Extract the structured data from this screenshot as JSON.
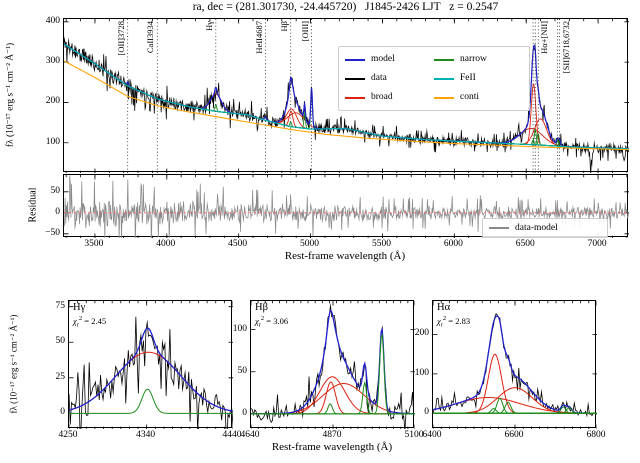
{
  "title": "ra, dec = (281.301730, -24.445720)   J1845-2426 LJT   z = 0.2547",
  "labels": {
    "flux": "fλ (10⁻¹⁷ erg s⁻¹ cm⁻² Å⁻¹)",
    "xaxis": "Rest-frame wavelength (Å)",
    "residual": "Residual"
  },
  "colors": {
    "model": "#2222cc",
    "data": "#000000",
    "broad": "#dd2211",
    "narrow": "#1d8c1d",
    "fe2": "#00b2b2",
    "conti": "#ffa408",
    "residual": "#8a8a8a",
    "zero_line": "#ff6b6b",
    "vline": "#222222"
  },
  "legend": {
    "main": [
      {
        "label": "model",
        "color": "model"
      },
      {
        "label": "data",
        "color": "data"
      },
      {
        "label": "broad",
        "color": "broad"
      },
      {
        "label": "narrow",
        "color": "narrow"
      },
      {
        "label": "FeII",
        "color": "fe2"
      },
      {
        "label": "conti",
        "color": "conti"
      }
    ],
    "residual": [
      {
        "label": "data-model",
        "color": "residual"
      }
    ]
  },
  "chart_data": [
    {
      "id": "main",
      "type": "line",
      "xlim": [
        3285,
        7215
      ],
      "ylim": [
        25,
        407
      ],
      "xticks": [
        3500,
        4000,
        4500,
        5000,
        5500,
        6000,
        6500,
        7000
      ],
      "xminor": 100,
      "yticks": [
        100,
        200,
        300,
        400
      ],
      "conti_anchors": [
        [
          3285,
          303
        ],
        [
          3500,
          262
        ],
        [
          3728,
          215
        ],
        [
          3934,
          192
        ],
        [
          4100,
          180
        ],
        [
          4340,
          165
        ],
        [
          4600,
          149
        ],
        [
          4861,
          133
        ],
        [
          5100,
          121
        ],
        [
          5400,
          111
        ],
        [
          5700,
          104
        ],
        [
          6000,
          98
        ],
        [
          6300,
          94
        ],
        [
          6563,
          90
        ],
        [
          6800,
          87
        ],
        [
          7000,
          85
        ],
        [
          7215,
          83
        ]
      ],
      "fe2_extra_anchors": [
        [
          3285,
          42
        ],
        [
          3500,
          34
        ],
        [
          3728,
          26
        ],
        [
          3934,
          17
        ],
        [
          4150,
          13
        ],
        [
          4340,
          13
        ],
        [
          4480,
          16
        ],
        [
          4560,
          18
        ],
        [
          4687,
          12
        ],
        [
          4861,
          7
        ],
        [
          5000,
          8
        ],
        [
          5150,
          16
        ],
        [
          5250,
          19
        ],
        [
          5350,
          15
        ],
        [
          5500,
          8
        ],
        [
          5800,
          6
        ],
        [
          6100,
          6
        ],
        [
          6400,
          5
        ],
        [
          6563,
          5
        ],
        [
          6800,
          3
        ],
        [
          7215,
          2
        ]
      ],
      "broad_components": [
        {
          "c": 4342,
          "a": 43,
          "s": 38
        },
        {
          "c": 4864,
          "a": 38,
          "s": 13
        },
        {
          "c": 4868,
          "a": 44,
          "s": 35
        },
        {
          "c": 4900,
          "a": 36,
          "s": 58
        },
        {
          "c": 6551,
          "a": 150,
          "s": 16
        },
        {
          "c": 6600,
          "a": 65,
          "s": 42
        },
        {
          "c": 6535,
          "a": 40,
          "s": 78
        }
      ],
      "narrow_components": [
        {
          "c": 3728,
          "a": 10,
          "s": 5
        },
        {
          "c": 4341,
          "a": 17,
          "s": 6.5
        },
        {
          "c": 4687,
          "a": 8,
          "s": 8
        },
        {
          "c": 4862,
          "a": 12,
          "s": 6
        },
        {
          "c": 4959,
          "a": 37,
          "s": 5.5
        },
        {
          "c": 5007,
          "a": 95,
          "s": 6
        },
        {
          "c": 6548,
          "a": 12,
          "s": 6
        },
        {
          "c": 6563,
          "a": 38,
          "s": 7
        },
        {
          "c": 6583,
          "a": 28,
          "s": 7
        },
        {
          "c": 6718,
          "a": 16,
          "s": 6
        },
        {
          "c": 6732,
          "a": 14,
          "s": 6
        }
      ],
      "noise": {
        "seed": 11,
        "amp_anchors": [
          [
            3285,
            27
          ],
          [
            3800,
            21
          ],
          [
            4300,
            18
          ],
          [
            5000,
            15
          ],
          [
            5600,
            13
          ],
          [
            6300,
            13
          ],
          [
            6800,
            14
          ],
          [
            7215,
            15
          ]
        ]
      },
      "dips": [
        {
          "c": 6950,
          "a": 45,
          "s": 8
        },
        {
          "c": 7180,
          "a": 35,
          "s": 6
        }
      ],
      "vlines": [
        {
          "label": "[OII]3728",
          "lines": [
            3728
          ]
        },
        {
          "label": "CaII3934",
          "lines": [
            3934
          ]
        },
        {
          "label": "Hγ",
          "lines": [
            4341
          ]
        },
        {
          "label": "HeII4687",
          "lines": [
            4687
          ]
        },
        {
          "label": "Hβ",
          "lines": [
            4862
          ]
        },
        {
          "label": "[OIII]",
          "lines": [
            5007
          ]
        },
        {
          "label": "Hα+[NII]",
          "lines": [
            6548,
            6563,
            6584
          ]
        },
        {
          "label": "[SII]6718,6732",
          "lines": [
            6718,
            6732
          ]
        }
      ]
    },
    {
      "id": "residual",
      "type": "line",
      "xlim": [
        3285,
        7215
      ],
      "ylim": [
        -60,
        90
      ],
      "xticks": [
        3500,
        4000,
        4500,
        5000,
        5500,
        6000,
        6500,
        7000
      ],
      "xminor": 100,
      "yticks": [
        -50,
        0,
        50
      ],
      "zero_line": true,
      "noise": {
        "seed": 23,
        "amp_anchors": [
          [
            3285,
            45
          ],
          [
            3800,
            38
          ],
          [
            4300,
            30
          ],
          [
            5000,
            24
          ],
          [
            5700,
            20
          ],
          [
            6400,
            17
          ],
          [
            7215,
            15
          ]
        ]
      }
    },
    {
      "id": "hg",
      "type": "line",
      "line_name": "Hγ",
      "chi": {
        "sym": "χ",
        "sub": "r",
        "sup": "2",
        "val": "= 2.45"
      },
      "xlim": [
        4250,
        4440
      ],
      "ylim": [
        -11,
        79
      ],
      "xticks": [
        4250,
        4340,
        4440
      ],
      "xminor": 10,
      "yticks": [
        0,
        25,
        50,
        75
      ],
      "broad_components": [
        {
          "c": 4342,
          "a": 43,
          "s": 38
        }
      ],
      "narrow_components": [
        {
          "c": 4341,
          "a": 17,
          "s": 6.5
        }
      ],
      "noise": {
        "seed": 31,
        "amp_anchors": [
          [
            4250,
            15
          ],
          [
            4440,
            15
          ]
        ]
      }
    },
    {
      "id": "hb",
      "type": "line",
      "line_name": "Hβ",
      "chi": {
        "sym": "χ",
        "sub": "r",
        "sup": "2",
        "val": "= 3.06"
      },
      "xlim": [
        4640,
        5100
      ],
      "ylim": [
        -18,
        134
      ],
      "xticks": [
        4640,
        4870,
        5100
      ],
      "xminor": 20,
      "yticks": [
        0,
        50,
        100
      ],
      "broad_components": [
        {
          "c": 4864,
          "a": 38,
          "s": 13
        },
        {
          "c": 4868,
          "a": 44,
          "s": 35
        },
        {
          "c": 4900,
          "a": 36,
          "s": 58
        }
      ],
      "narrow_components": [
        {
          "c": 4862,
          "a": 12,
          "s": 6
        },
        {
          "c": 4959,
          "a": 37,
          "s": 5.5
        },
        {
          "c": 5007,
          "a": 95,
          "s": 6
        }
      ],
      "noise": {
        "seed": 41,
        "amp_anchors": [
          [
            4640,
            13
          ],
          [
            5100,
            13
          ]
        ]
      }
    },
    {
      "id": "ha",
      "type": "line",
      "line_name": "Hα",
      "chi": {
        "sym": "χ",
        "sub": "r",
        "sup": "2",
        "val": "= 2.83"
      },
      "xlim": [
        6400,
        6800
      ],
      "ylim": [
        -40,
        285
      ],
      "xticks": [
        6400,
        6600,
        6800
      ],
      "xminor": 20,
      "yticks": [
        0,
        100,
        200
      ],
      "broad_components": [
        {
          "c": 6551,
          "a": 150,
          "s": 16
        },
        {
          "c": 6600,
          "a": 65,
          "s": 42
        },
        {
          "c": 6535,
          "a": 40,
          "s": 78
        }
      ],
      "narrow_components": [
        {
          "c": 6548,
          "a": 12,
          "s": 6
        },
        {
          "c": 6563,
          "a": 38,
          "s": 7
        },
        {
          "c": 6583,
          "a": 28,
          "s": 7
        },
        {
          "c": 6718,
          "a": 16,
          "s": 6
        },
        {
          "c": 6732,
          "a": 14,
          "s": 6
        }
      ],
      "noise": {
        "seed": 53,
        "amp_anchors": [
          [
            6400,
            14
          ],
          [
            6800,
            14
          ]
        ]
      }
    }
  ]
}
